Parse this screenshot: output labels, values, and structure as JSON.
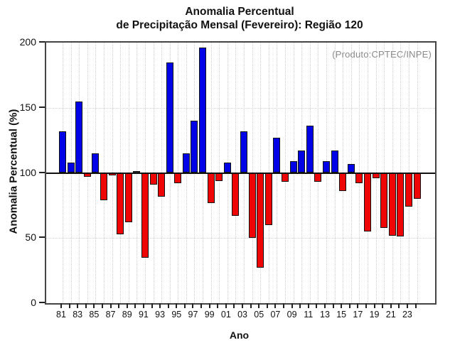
{
  "title": {
    "line1": "Anomalia Percentual",
    "line2": "de Precipitação Mensal (Fevereiro): Região 120"
  },
  "annotation": {
    "product_label": "(Produto:CPTEC/INPE)"
  },
  "axes": {
    "x_title": "Ano",
    "y_title": "Anomalia Percentual (%)",
    "y_tick_values": [
      0,
      50,
      100,
      150,
      200
    ],
    "x_labeled_every": 2
  },
  "chart_data": {
    "type": "bar",
    "title": "Anomalia Percentual de Precipitação Mensal (Fevereiro): Região 120",
    "xlabel": "Ano",
    "ylabel": "Anomalia Percentual (%)",
    "ylim": [
      0,
      200
    ],
    "baseline": 100,
    "grid": "dotted, vertical line per year, horizontal at 50 and 150",
    "legend_position": "none",
    "categories": [
      "81",
      "82",
      "83",
      "84",
      "85",
      "86",
      "87",
      "88",
      "89",
      "90",
      "91",
      "92",
      "93",
      "94",
      "95",
      "96",
      "97",
      "98",
      "99",
      "00",
      "01",
      "02",
      "03",
      "04",
      "05",
      "06",
      "07",
      "08",
      "09",
      "10",
      "11",
      "12",
      "13",
      "14",
      "15",
      "16",
      "17",
      "18",
      "19",
      "20",
      "21",
      "22",
      "23",
      "24"
    ],
    "values": [
      132,
      108,
      155,
      97,
      115,
      79,
      98,
      53,
      62,
      100,
      35,
      91,
      82,
      185,
      92,
      115,
      140,
      196,
      77,
      94,
      108,
      67,
      132,
      50,
      27,
      60,
      127,
      93,
      109,
      117,
      136,
      93,
      109,
      117,
      86,
      107,
      92,
      55,
      96,
      58,
      52,
      51,
      74,
      80
    ],
    "colors": {
      "above_baseline": "#0202e6",
      "below_baseline": "#ee0505",
      "at_baseline": "#1a1a1a",
      "baseline_line": "#111111",
      "grid_line": "#cfcfcf",
      "frame": "#444444",
      "product_text": "#8a8a8a"
    }
  }
}
